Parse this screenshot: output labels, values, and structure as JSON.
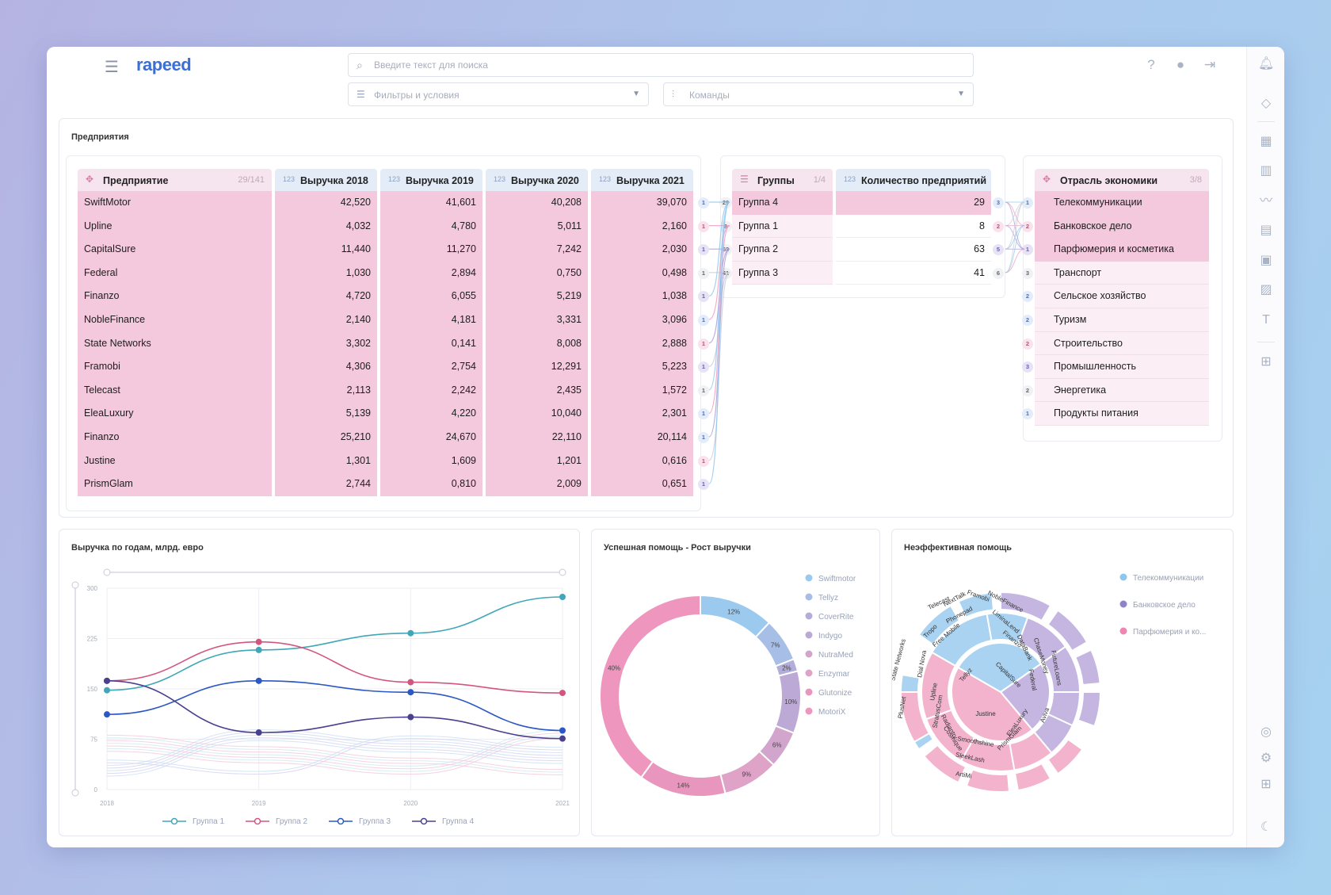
{
  "header": {
    "logo": "rapeed",
    "search_placeholder": "Введите текст для поиска",
    "filters_label": "Фильтры и условия",
    "commands_label": "Команды"
  },
  "enterprises_panel": {
    "title": "Предприятия",
    "main_table": {
      "col_enterprise": "Предприятие",
      "enterprise_count": "29/141",
      "col_2018": "Выручка 2018",
      "col_2019": "Выручка 2019",
      "col_2020": "Выручка 2020",
      "col_2021": "Выручка 2021",
      "type_icon": "123",
      "rows": [
        {
          "name": "SwiftMotor",
          "v2018": "42,520",
          "v2019": "41,601",
          "v2020": "40,208",
          "v2021": "39,070",
          "group": "1",
          "gcolor": "b"
        },
        {
          "name": "Upline",
          "v2018": "4,032",
          "v2019": "4,780",
          "v2020": "5,011",
          "v2021": "2,160",
          "group": "1",
          "gcolor": "p"
        },
        {
          "name": "CapitalSure",
          "v2018": "11,440",
          "v2019": "11,270",
          "v2020": "7,242",
          "v2021": "2,030",
          "group": "1",
          "gcolor": "v"
        },
        {
          "name": "Federal",
          "v2018": "1,030",
          "v2019": "2,894",
          "v2020": "0,750",
          "v2021": "0,498",
          "group": "1",
          "gcolor": "g"
        },
        {
          "name": "Finanzo",
          "v2018": "4,720",
          "v2019": "6,055",
          "v2020": "5,219",
          "v2021": "1,038",
          "group": "1",
          "gcolor": "v"
        },
        {
          "name": "NobleFinance",
          "v2018": "2,140",
          "v2019": "4,181",
          "v2020": "3,331",
          "v2021": "3,096",
          "group": "1",
          "gcolor": "b"
        },
        {
          "name": "State Networks",
          "v2018": "3,302",
          "v2019": "0,141",
          "v2020": "8,008",
          "v2021": "2,888",
          "group": "1",
          "gcolor": "p"
        },
        {
          "name": "Framobi",
          "v2018": "4,306",
          "v2019": "2,754",
          "v2020": "12,291",
          "v2021": "5,223",
          "group": "1",
          "gcolor": "v"
        },
        {
          "name": "Telecast",
          "v2018": "2,113",
          "v2019": "2,242",
          "v2020": "2,435",
          "v2021": "1,572",
          "group": "1",
          "gcolor": "g"
        },
        {
          "name": "EleaLuxury",
          "v2018": "5,139",
          "v2019": "4,220",
          "v2020": "10,040",
          "v2021": "2,301",
          "group": "1",
          "gcolor": "b"
        },
        {
          "name": "Finanzo",
          "v2018": "25,210",
          "v2019": "24,670",
          "v2020": "22,110",
          "v2021": "20,114",
          "group": "1",
          "gcolor": "b"
        },
        {
          "name": "Justine",
          "v2018": "1,301",
          "v2019": "1,609",
          "v2020": "1,201",
          "v2021": "0,616",
          "group": "1",
          "gcolor": "p"
        },
        {
          "name": "PrismGlam",
          "v2018": "2,744",
          "v2019": "0,810",
          "v2020": "2,009",
          "v2021": "0,651",
          "group": "1",
          "gcolor": "v"
        }
      ]
    },
    "groups_table": {
      "col_groups": "Группы",
      "groups_count": "1/4",
      "col_count": "Количество предприятий",
      "type_icon": "123",
      "rows": [
        {
          "badge": "29",
          "name": "Группа 4",
          "count": "29",
          "rbadge": "3",
          "rcolor": "b",
          "sel": true
        },
        {
          "badge": "8",
          "name": "Группа 1",
          "count": "8",
          "rbadge": "2",
          "rcolor": "p",
          "sel": false
        },
        {
          "badge": "63",
          "name": "Группа 2",
          "count": "63",
          "rbadge": "5",
          "rcolor": "v",
          "sel": false
        },
        {
          "badge": "41",
          "name": "Группа 3",
          "count": "41",
          "rbadge": "6",
          "rcolor": "g",
          "sel": false
        }
      ]
    },
    "sectors_table": {
      "col_sector": "Отрасль экономики",
      "sector_count": "3/8",
      "rows": [
        {
          "badge": "1",
          "name": "Телекоммуникации",
          "bcolor": "b",
          "sel": true
        },
        {
          "badge": "2",
          "name": "Банковское дело",
          "bcolor": "p",
          "sel": true
        },
        {
          "badge": "1",
          "name": "Парфюмерия и косметика",
          "bcolor": "v",
          "sel": true
        },
        {
          "badge": "3",
          "name": "Транспорт",
          "bcolor": "g",
          "sel": false
        },
        {
          "badge": "2",
          "name": "Сельское хозяйство",
          "bcolor": "b",
          "sel": false
        },
        {
          "badge": "2",
          "name": "Туризм",
          "bcolor": "b",
          "sel": false
        },
        {
          "badge": "2",
          "name": "Строительство",
          "bcolor": "p",
          "sel": false
        },
        {
          "badge": "3",
          "name": "Промышленность",
          "bcolor": "v",
          "sel": false
        },
        {
          "badge": "2",
          "name": "Энергетика",
          "bcolor": "g",
          "sel": false
        },
        {
          "badge": "1",
          "name": "Продукты питания",
          "bcolor": "b",
          "sel": false
        }
      ]
    }
  },
  "line_chart_panel": {
    "title": "Выручка по годам, млрд. евро"
  },
  "donut_panel": {
    "title": "Успешная помощь - Рост выручки"
  },
  "sunburst_panel": {
    "title": "Неэффективная помощь",
    "legend": [
      {
        "name": "Телекоммуникации",
        "color": "#8ec6ee"
      },
      {
        "name": "Банковское дело",
        "color": "#8f82c9"
      },
      {
        "name": "Парфюмерия и ко...",
        "color": "#ee86b1"
      }
    ],
    "labels": [
      "NextTalk",
      "Telecast",
      "Framobi",
      "Phonepad",
      "NobleFinance",
      "LiminaLend",
      "Tropo",
      "Free Mobile",
      "Finanzo",
      "DataBank",
      "ChaseMoney",
      "FutureLoans",
      "State Networks",
      "Dial Nova",
      "Tellyz",
      "CapitalSure",
      "Federal",
      "Upline",
      "PlusNet",
      "StratusCom",
      "Radiantry",
      "Justine",
      "EleaLuxury",
      "Aviva",
      "Cosmique",
      "Smoothshine",
      "PrismGlam",
      "SleekLash",
      "ArtiMi"
    ]
  },
  "chart_data": [
    {
      "type": "line",
      "title": "Выручка по годам, млрд. евро",
      "x": [
        "2018",
        "2019",
        "2020",
        "2021"
      ],
      "yticks": [
        "0",
        "75",
        "150",
        "225",
        "300"
      ],
      "ylim": [
        0,
        300
      ],
      "grid": true,
      "legend_position": "bottom",
      "series": [
        {
          "name": "Группа 1",
          "color": "#3fa7b8",
          "values": [
            148,
            208,
            233,
            287
          ]
        },
        {
          "name": "Группа 2",
          "color": "#d2567f",
          "values": [
            162,
            220,
            160,
            144
          ]
        },
        {
          "name": "Группа 3",
          "color": "#2b58c4",
          "values": [
            112,
            162,
            145,
            88
          ]
        },
        {
          "name": "Группа 4",
          "color": "#4a4090",
          "values": [
            162,
            85,
            108,
            76
          ]
        }
      ]
    },
    {
      "type": "pie",
      "title": "Успешная помощь - Рост выручки",
      "legend_position": "right",
      "slices": [
        {
          "name": "Swiftmotor",
          "value": 12,
          "label": "12%",
          "color": "#9ccaef"
        },
        {
          "name": "Tellyz",
          "value": 7,
          "label": "7%",
          "color": "#a7bee6"
        },
        {
          "name": "CoverRite",
          "value": 2,
          "label": "2%",
          "color": "#b3aed9"
        },
        {
          "name": "Indygo",
          "value": 10,
          "label": "10%",
          "color": "#bca9d6"
        },
        {
          "name": "NutraMed",
          "value": 6,
          "label": "6%",
          "color": "#d2a6cc"
        },
        {
          "name": "Enzymar",
          "value": 9,
          "label": "9%",
          "color": "#dfa3c8"
        },
        {
          "name": "Glutonize",
          "value": 14,
          "label": "14%",
          "color": "#e896bd"
        },
        {
          "name": "MotoriX",
          "value": 40,
          "label": "40%",
          "color": "#ee96bd"
        }
      ]
    }
  ]
}
